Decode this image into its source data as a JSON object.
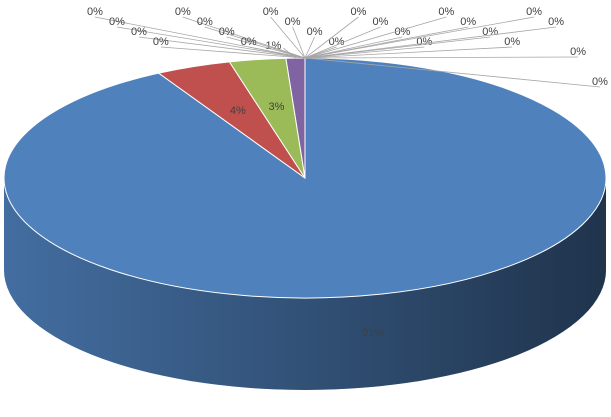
{
  "chart_data": {
    "type": "pie3d",
    "values": [
      91,
      4,
      3,
      1,
      0,
      0,
      0,
      0,
      0,
      0,
      0,
      0,
      0,
      0,
      0,
      0,
      0,
      0,
      0,
      0,
      0,
      0,
      0,
      0,
      0,
      0,
      0,
      0
    ],
    "value_labels": [
      "91%",
      "4%",
      "3%",
      "1%",
      "0%",
      "0%",
      "0%",
      "0%",
      "0%",
      "0%",
      "0%",
      "0%",
      "0%",
      "0%",
      "0%",
      "0%",
      "0%",
      "0%",
      "0%",
      "0%",
      "0%",
      "0%",
      "0%",
      "0%",
      "0%",
      "0%",
      "0%",
      "0%"
    ],
    "colors": [
      "#4f81bd",
      "#c0504d",
      "#9bbb59",
      "#8064a2",
      "#4bacc6",
      "#f79646",
      "#2c4d75",
      "#772c2a",
      "#5f7530",
      "#4d3b62",
      "#276a7c",
      "#b65708",
      "#729aca",
      "#cd7371",
      "#afc97a",
      "#9983b5",
      "#6fbdd1",
      "#f9ab6b",
      "#3a679c",
      "#9f3b38",
      "#7f9c40",
      "#664f83",
      "#358ea6",
      "#f3740b",
      "#95b3d7",
      "#d99694",
      "#c3d69b",
      "#b3a2c7"
    ]
  }
}
